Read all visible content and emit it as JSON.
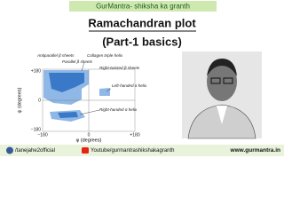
{
  "header": {
    "title": "GurMantra- shiksha ka granth"
  },
  "title": {
    "line1": "Ramachandran plot",
    "line2": "(Part-1 basics)"
  },
  "diagram": {
    "labels": [
      "Antiparallel β sheets",
      "Parallel β sheets",
      "Collagen triple helix",
      "Right-twisted β sheets",
      "Left-handed α helix",
      "Right-handed α helix"
    ],
    "y_axis_label": "ψ (degrees)",
    "x_axis_label": "φ (degrees)",
    "yticks": [
      "+180",
      "0",
      "−180"
    ],
    "xticks": [
      "−180",
      "0",
      "+180"
    ]
  },
  "footer": {
    "links": [
      "/tanejahe2official",
      "Youtube/gurmantrashikshakagranth",
      "www.gurmantra.in"
    ]
  }
}
